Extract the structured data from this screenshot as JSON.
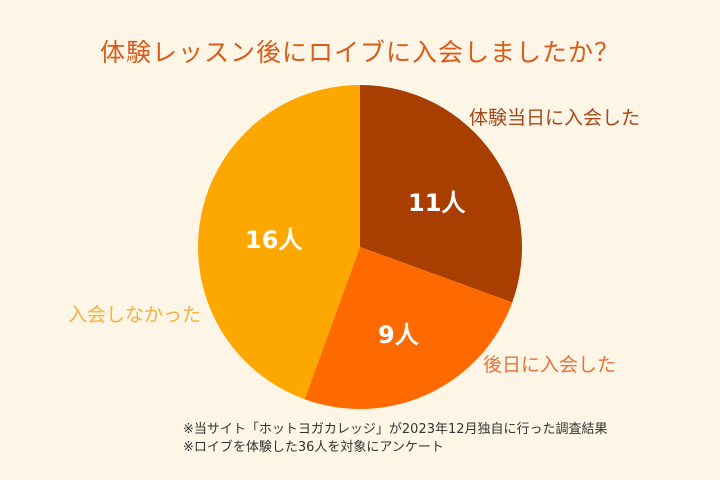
{
  "title": "体験レッスン後にロイブに入会しましたか？",
  "chart_data": {
    "type": "pie",
    "title": "体験レッスン後にロイブに入会しましたか？",
    "categories": [
      "体験当日に入会した",
      "後日に入会した",
      "入会しなかった"
    ],
    "values": [
      11,
      9,
      16
    ],
    "value_labels": [
      "11人",
      "9人",
      "16人"
    ],
    "unit": "人",
    "total": 36,
    "colors": [
      "#A83E00",
      "#FF6A00",
      "#FCA800"
    ],
    "label_colors": [
      "#A8471A",
      "#E8743A",
      "#F5B040"
    ],
    "start_angle": "12 o'clock",
    "direction": "clockwise"
  },
  "notes": [
    "※当サイト「ホットヨガカレッジ」が2023年12月独自に行った調査結果",
    "※ロイブを体験した36人を対象にアンケート"
  ]
}
